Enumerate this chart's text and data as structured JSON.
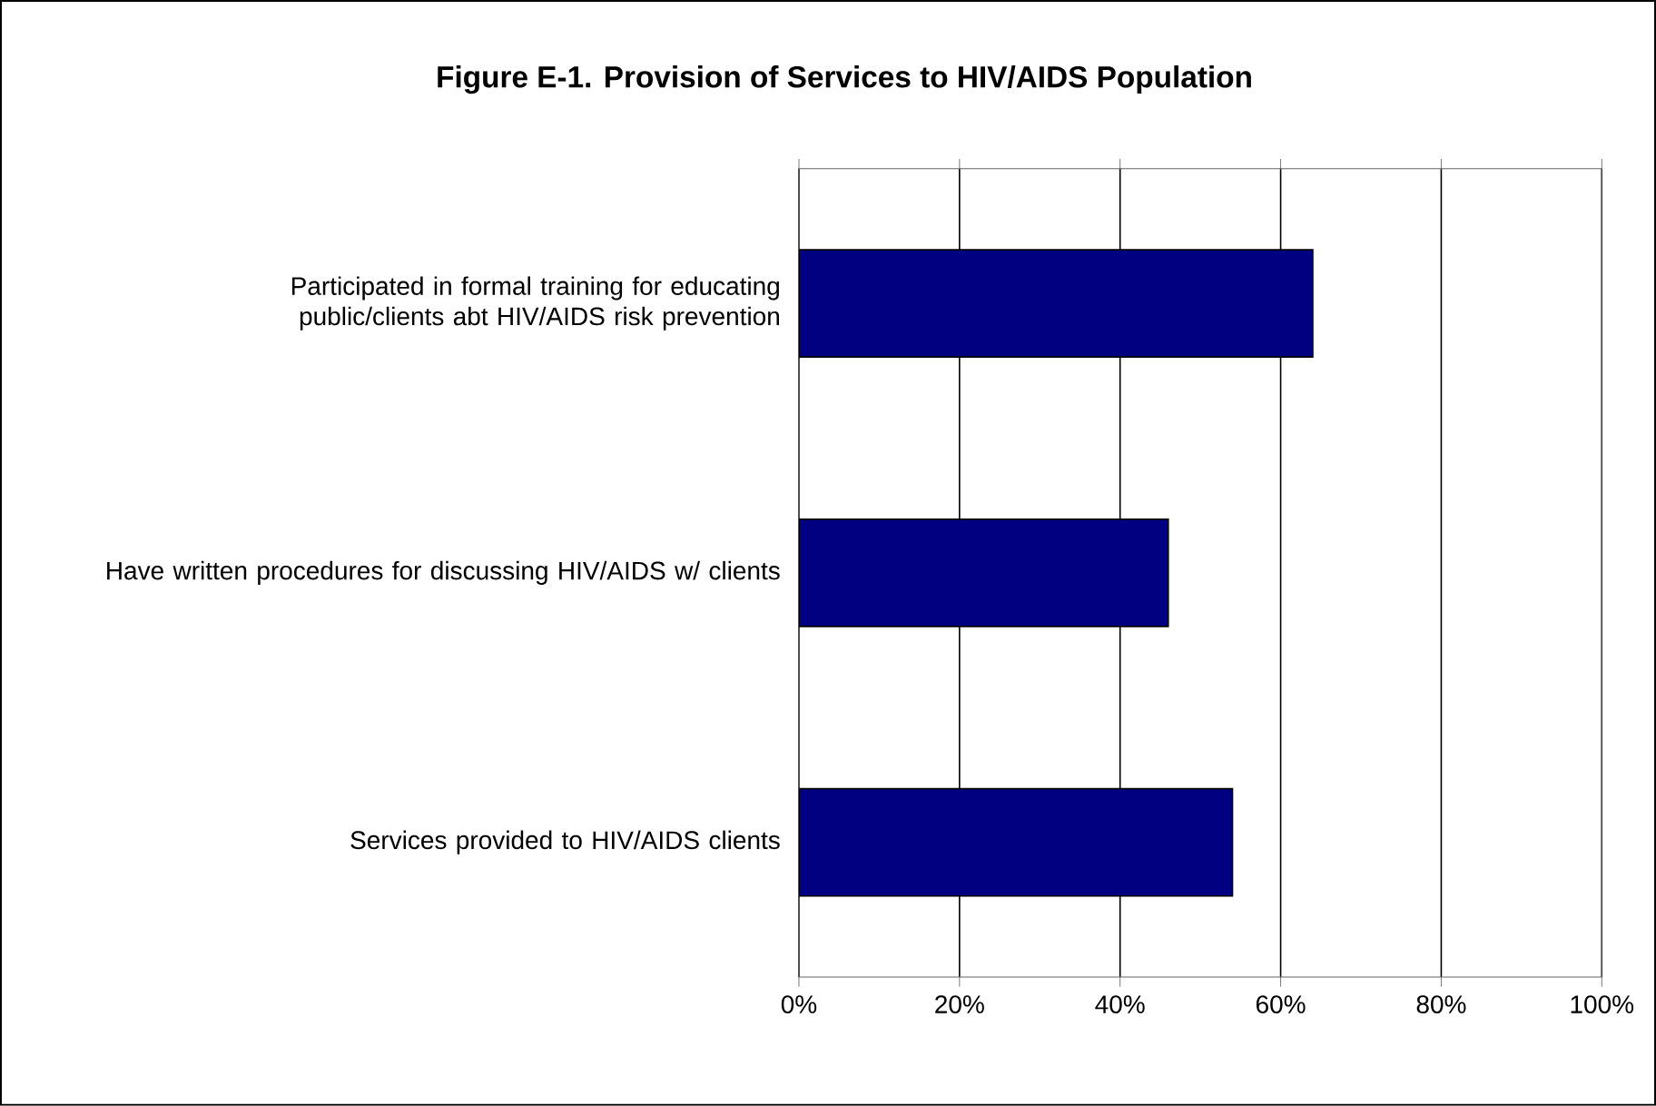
{
  "chart_data": {
    "type": "bar",
    "orientation": "horizontal",
    "title": "Figure E-1.  Provision of Services to HIV/AIDS Population",
    "categories": [
      "Participated in formal training for educating public/clients abt HIV/AIDS risk prevention",
      "Have written procedures for discussing HIV/AIDS w/ clients",
      "Services provided to HIV/AIDS clients"
    ],
    "values": [
      64,
      46,
      54
    ],
    "color": "#000080",
    "xlim": [
      0,
      100
    ],
    "xticks": [
      {
        "value": 0,
        "label": "0%"
      },
      {
        "value": 20,
        "label": "20%"
      },
      {
        "value": 40,
        "label": "40%"
      },
      {
        "value": 60,
        "label": "60%"
      },
      {
        "value": 80,
        "label": "80%"
      },
      {
        "value": 100,
        "label": "100%"
      }
    ],
    "grid": "x"
  }
}
